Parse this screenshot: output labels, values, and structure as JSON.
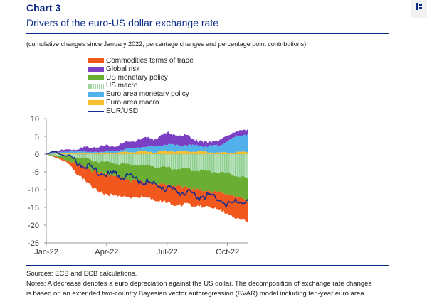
{
  "header": {
    "chart_label": "Chart 3",
    "title": "Drivers of the euro-US dollar exchange rate",
    "subtitle": "(cumulative changes since January 2022, percentage changes and percentage point contributions)"
  },
  "notes": {
    "sources": "Sources: ECB and ECB calculations.",
    "line1": "Notes: A decrease denotes a euro depreciation against the US dollar. The decomposition of exchange rate changes",
    "line2": "is based on an extended two-country Bayesian vector autoregression (BVAR) model including ten-year euro area"
  },
  "colors": {
    "accent": "#0a2a8a",
    "commodities": "#f0581e",
    "global_risk": "#7b3fc4",
    "us_monetary": "#6aae33",
    "us_macro": "#9ed49f",
    "ea_monetary": "#52b1ea",
    "ea_macro": "#f6c12c",
    "eurusd": "#1a2d8c"
  },
  "chart_data": {
    "type": "area",
    "subtype": "stacked-area-with-line",
    "title": "Drivers of the euro-US dollar exchange rate",
    "ylabel": "",
    "xlabel": "",
    "ylim": [
      -25,
      10
    ],
    "yticks": [
      10,
      5,
      0,
      -5,
      -10,
      -15,
      -20,
      -25
    ],
    "xticks": [
      "Jan-22",
      "Apr-22",
      "Jul-22",
      "Oct-22"
    ],
    "legend_position": "top",
    "legend": [
      "Commodities terms of trade",
      "Global risk",
      "US monetary policy",
      "US macro",
      "Euro area monetary policy",
      "Euro area macro",
      "EUR/USD"
    ],
    "x": [
      0,
      0.5,
      1,
      1.5,
      2,
      2.5,
      3,
      3.5,
      4,
      4.5,
      5,
      5.5,
      6,
      6.5,
      7,
      7.5,
      8,
      8.5,
      9,
      9.5,
      10
    ],
    "x_note": "months since start of January 2022",
    "series": [
      {
        "name": "Euro area macro",
        "values": [
          0,
          0.2,
          0.3,
          0.3,
          0.3,
          0.2,
          0.4,
          0.4,
          0.6,
          0.6,
          0.8,
          0.5,
          1.0,
          0.7,
          0.8,
          0.7,
          0.6,
          0.4,
          0.5,
          0.6,
          0.6
        ]
      },
      {
        "name": "Euro area monetary policy",
        "values": [
          0,
          0.3,
          0.4,
          0.5,
          0.5,
          0.3,
          0.4,
          0.4,
          0.9,
          1.0,
          1.4,
          1.6,
          1.8,
          1.8,
          1.6,
          1.8,
          1.6,
          2.0,
          3.2,
          4.6,
          5.0
        ]
      },
      {
        "name": "Global risk",
        "values": [
          0,
          0.3,
          0.6,
          0.5,
          1.2,
          1.5,
          1.6,
          1.5,
          1.8,
          2.1,
          2.4,
          2.2,
          3.3,
          2.8,
          2.7,
          1.4,
          1.2,
          1.3,
          1.5,
          1.4,
          1.0
        ]
      },
      {
        "name": "US macro",
        "values": [
          0,
          -0.3,
          -0.6,
          -1.0,
          -1.5,
          -2.0,
          -2.3,
          -2.6,
          -2.8,
          -3.0,
          -3.2,
          -3.5,
          -3.8,
          -4.0,
          -4.2,
          -4.5,
          -4.8,
          -5.0,
          -5.4,
          -6.0,
          -7.2
        ]
      },
      {
        "name": "US monetary policy",
        "values": [
          0,
          -0.5,
          -1.2,
          -1.8,
          -2.5,
          -3.0,
          -3.5,
          -3.8,
          -4.2,
          -4.6,
          -4.6,
          -4.8,
          -4.8,
          -5.0,
          -5.2,
          -5.4,
          -5.6,
          -5.6,
          -5.8,
          -6.0,
          -6.2
        ]
      },
      {
        "name": "Commodities terms of trade",
        "values": [
          0,
          -0.2,
          -0.6,
          -2.5,
          -4.0,
          -5.0,
          -5.8,
          -5.2,
          -5.2,
          -4.5,
          -4.5,
          -4.5,
          -5.5,
          -5.2,
          -4.8,
          -4.5,
          -4.6,
          -4.5,
          -5.8,
          -6.0,
          -6.0
        ]
      },
      {
        "name": "EUR/USD",
        "values": [
          0,
          0.5,
          -0.5,
          -2.0,
          -3.5,
          -5.0,
          -6.0,
          -5.5,
          -6.5,
          -7.0,
          -8.0,
          -9.0,
          -9.5,
          -10.5,
          -11.0,
          -12.0,
          -11.5,
          -12.5,
          -14.0,
          -13.5,
          -13.5
        ]
      }
    ]
  }
}
